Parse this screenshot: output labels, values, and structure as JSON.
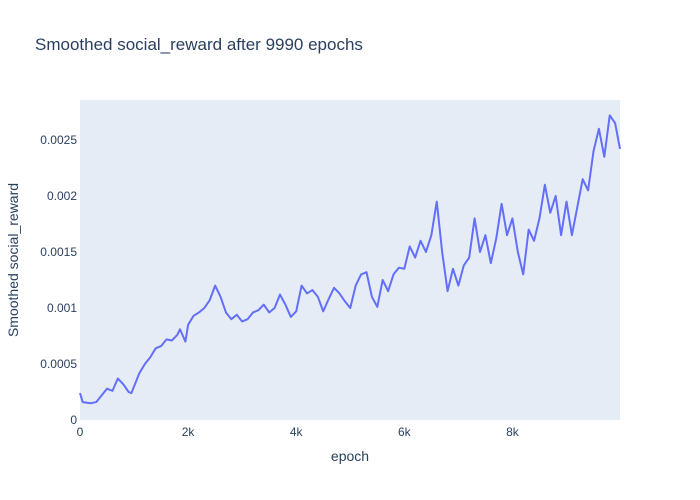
{
  "chart_data": {
    "type": "line",
    "title": "Smoothed social_reward after 9990 epochs",
    "x_label": "epoch",
    "y_label": "Smoothed social_reward",
    "xlim": [
      0,
      9990
    ],
    "ylim": [
      0,
      0.002857
    ],
    "xticks": [
      0,
      {
        "value": 2000,
        "label": "2k"
      },
      {
        "value": 4000,
        "label": "4k"
      },
      {
        "value": 6000,
        "label": "6k"
      },
      {
        "value": 8000,
        "label": "8k"
      }
    ],
    "yticks": [
      0,
      0.0005,
      0.001,
      0.0015,
      0.002,
      0.0025
    ],
    "grid": true,
    "series": [
      {
        "color": "#636efa",
        "x": [
          0,
          50,
          200,
          300,
          400,
          500,
          600,
          700,
          800,
          900,
          950,
          1000,
          1100,
          1200,
          1300,
          1400,
          1500,
          1600,
          1700,
          1800,
          1850,
          1950,
          2000,
          2100,
          2200,
          2300,
          2400,
          2500,
          2550,
          2600,
          2700,
          2800,
          2900,
          3000,
          3100,
          3200,
          3300,
          3400,
          3500,
          3600,
          3700,
          3800,
          3900,
          4000,
          4100,
          4200,
          4300,
          4400,
          4500,
          4600,
          4700,
          4800,
          4900,
          5000,
          5100,
          5200,
          5300,
          5400,
          5500,
          5600,
          5700,
          5800,
          5900,
          6000,
          6100,
          6200,
          6300,
          6400,
          6500,
          6600,
          6700,
          6800,
          6900,
          7000,
          7100,
          7200,
          7300,
          7400,
          7500,
          7600,
          7700,
          7800,
          7900,
          8000,
          8100,
          8200,
          8300,
          8400,
          8500,
          8600,
          8700,
          8800,
          8900,
          9000,
          9100,
          9200,
          9300,
          9400,
          9500,
          9600,
          9700,
          9800,
          9900,
          9990
        ],
        "values": [
          0.00024,
          0.00016,
          0.00015,
          0.00016,
          0.00022,
          0.00028,
          0.00026,
          0.00037,
          0.00032,
          0.00025,
          0.00024,
          0.0003,
          0.00042,
          0.0005,
          0.00056,
          0.00064,
          0.00066,
          0.00072,
          0.00071,
          0.00076,
          0.00081,
          0.0007,
          0.00085,
          0.00093,
          0.00096,
          0.001,
          0.00107,
          0.0012,
          0.00115,
          0.0011,
          0.00096,
          0.0009,
          0.00094,
          0.00088,
          0.0009,
          0.00096,
          0.00098,
          0.00103,
          0.00096,
          0.001,
          0.00112,
          0.00103,
          0.00092,
          0.00097,
          0.0012,
          0.00113,
          0.00116,
          0.0011,
          0.00097,
          0.00108,
          0.00118,
          0.00113,
          0.00106,
          0.001,
          0.0012,
          0.0013,
          0.00132,
          0.0011,
          0.00101,
          0.00125,
          0.00115,
          0.0013,
          0.00136,
          0.00135,
          0.00155,
          0.00145,
          0.0016,
          0.0015,
          0.00165,
          0.00195,
          0.0015,
          0.00115,
          0.00135,
          0.0012,
          0.00138,
          0.00145,
          0.0018,
          0.0015,
          0.00165,
          0.0014,
          0.00162,
          0.00193,
          0.00165,
          0.0018,
          0.0015,
          0.0013,
          0.0017,
          0.0016,
          0.0018,
          0.0021,
          0.00185,
          0.002,
          0.00165,
          0.00195,
          0.00165,
          0.0019,
          0.00215,
          0.00205,
          0.0024,
          0.0026,
          0.00235,
          0.00272,
          0.00265,
          0.00242
        ]
      }
    ]
  }
}
